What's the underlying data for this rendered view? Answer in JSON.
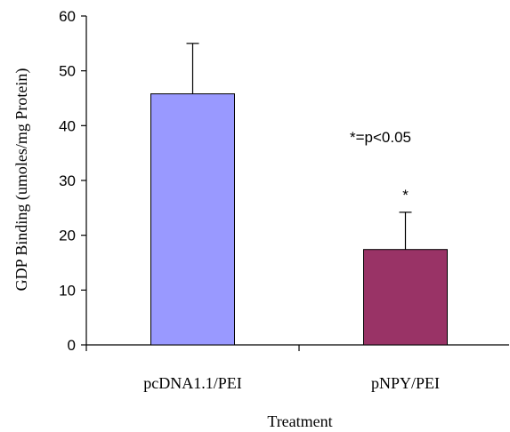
{
  "chart_data": {
    "type": "bar",
    "title": "",
    "xlabel": "Treatment",
    "ylabel": "GDP Binding (umoles/mg Protein)",
    "ylim": [
      0,
      60
    ],
    "yticks": [
      0,
      10,
      20,
      30,
      40,
      50,
      60
    ],
    "categories": [
      "pcDNA1.1/PEI",
      "pNPY/PEI"
    ],
    "values": [
      45.8,
      17.4
    ],
    "error_upper": [
      9.2,
      6.8
    ],
    "bar_colors": [
      "#9999ff",
      "#993366"
    ],
    "significance_markers": [
      "",
      "*"
    ],
    "annotations": [
      "*=p<0.05"
    ],
    "grid": false,
    "legend": "none"
  }
}
